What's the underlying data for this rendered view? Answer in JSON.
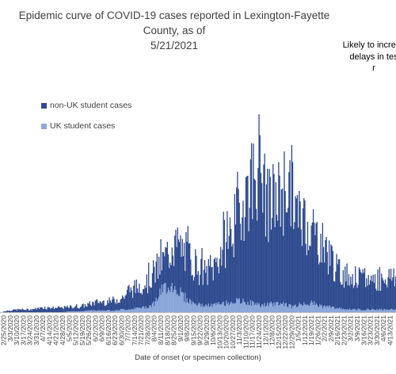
{
  "chart_data": {
    "type": "bar",
    "stacked": true,
    "title": "Epidemic curve of COVID-19 cases reported in Lexington-Fayette County, as of 5/21/2021",
    "title_lines": [
      "Epidemic curve of COVID-19 cases reported in Lexington-Fayette County, as of",
      "5/21/2021"
    ],
    "annotation_lines": [
      "Likely to increas",
      "delays in tes",
      "r"
    ],
    "xlabel": "Date of onset (or specimen collection)",
    "ylabel": "",
    "legend_position": "left",
    "gridlines": false,
    "x_start": "2/25/2020",
    "x_end": "4/19/2021",
    "x_ticks": [
      "2/25/2020",
      "3/3/2020",
      "3/10/2020",
      "3/17/2020",
      "3/24/2020",
      "3/31/2020",
      "4/7/2020",
      "4/14/2020",
      "4/21/2020",
      "4/28/2020",
      "5/5/2020",
      "5/12/2020",
      "5/19/2020",
      "5/26/2020",
      "6/2/2020",
      "6/9/2020",
      "6/16/2020",
      "6/23/2020",
      "6/30/2020",
      "7/7/2020",
      "7/14/2020",
      "7/21/2020",
      "7/28/2020",
      "8/4/2020",
      "8/11/2020",
      "8/18/2020",
      "8/25/2020",
      "9/1/2020",
      "9/8/2020",
      "9/15/2020",
      "9/22/2020",
      "9/29/2020",
      "10/6/2020",
      "10/13/2020",
      "10/20/2020",
      "10/27/2020",
      "11/3/2020",
      "11/10/2020",
      "11/17/2020",
      "11/24/2020",
      "12/1/2020",
      "12/8/2020",
      "12/15/2020",
      "12/22/2020",
      "12/29/2020",
      "1/5/2021",
      "1/12/2021",
      "1/19/2021",
      "1/26/2021",
      "2/2/2021",
      "2/9/2021",
      "2/16/2021",
      "2/23/2021",
      "3/2/2021",
      "3/9/2021",
      "3/16/2021",
      "3/23/2021",
      "3/30/2021",
      "4/6/2021",
      "4/13/2021"
    ],
    "series": [
      {
        "name": "non-UK student cases",
        "color": "#2F4B8F"
      },
      {
        "name": "UK student cases",
        "color": "#8EA9DB"
      }
    ],
    "weekly_total_peaks": [
      1,
      2,
      3,
      3,
      3,
      4,
      5,
      5,
      5,
      5,
      6,
      6,
      7,
      9,
      11,
      12,
      12,
      14,
      16,
      22,
      27,
      32,
      34,
      46,
      54,
      66,
      76,
      72,
      66,
      58,
      48,
      44,
      50,
      66,
      82,
      96,
      110,
      138,
      152,
      170,
      128,
      114,
      130,
      142,
      140,
      106,
      104,
      98,
      84,
      74,
      64,
      46,
      44,
      40,
      38,
      36,
      37,
      38,
      40,
      40
    ],
    "weekly_uk_peaks": [
      0,
      0,
      0,
      0,
      0,
      0,
      0,
      0,
      0,
      0,
      1,
      1,
      1,
      2,
      2,
      2,
      2,
      2,
      3,
      3,
      4,
      5,
      6,
      10,
      22,
      30,
      28,
      22,
      14,
      10,
      8,
      7,
      8,
      9,
      10,
      12,
      12,
      11,
      10,
      8,
      8,
      9,
      10,
      9,
      6,
      8,
      10,
      10,
      8,
      6,
      6,
      4,
      4,
      3,
      3,
      3,
      3,
      3,
      3,
      3
    ],
    "ylim": [
      0,
      185
    ]
  }
}
